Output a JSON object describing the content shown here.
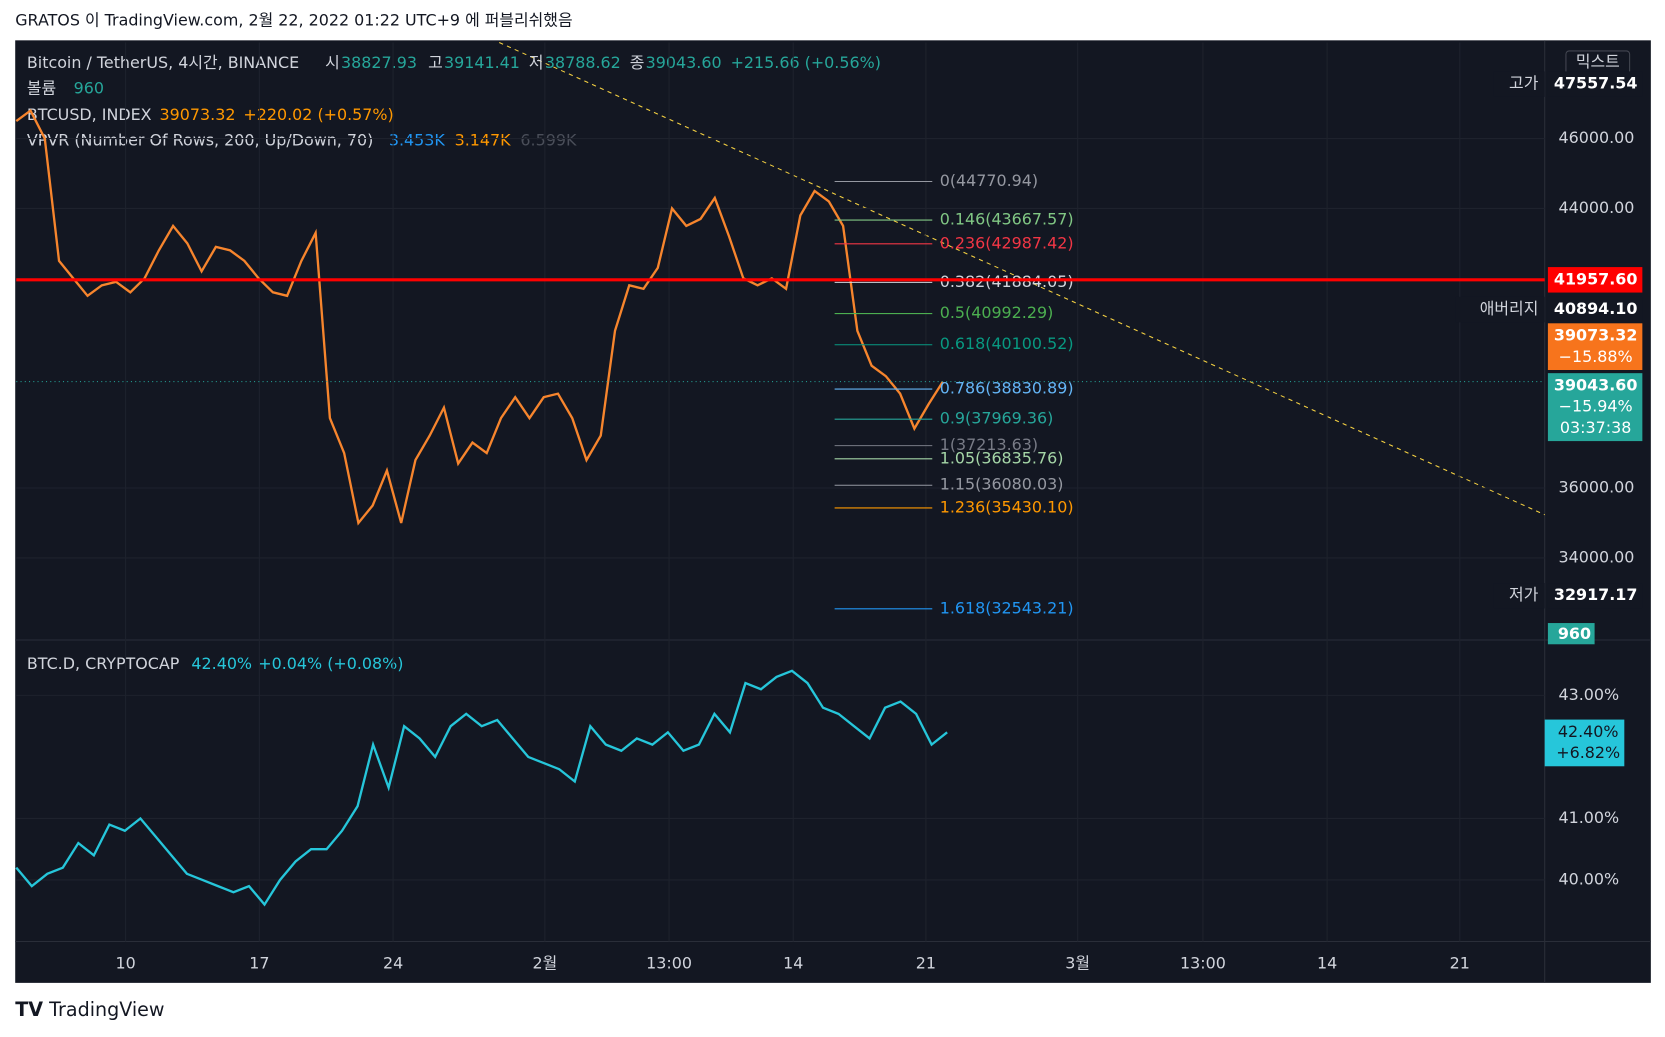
{
  "header": {
    "publish_note": "GRATOS 이 TradingView.com, 2월 22, 2022 01:22 UTC+9 에 퍼블리쉬했음"
  },
  "legend": {
    "symbol": "Bitcoin / TetherUS, 4시간, BINANCE",
    "ohlc": [
      "시",
      "38827.93",
      "고",
      "39141.41",
      "저",
      "38788.62",
      "종",
      "39043.60"
    ],
    "change": "+215.66 (+0.56%)",
    "volume_label": "볼륨",
    "volume": "960",
    "index": "BTCUSD, INDEX",
    "index_price": "39073.32",
    "index_change": "+220.02 (+0.57%)",
    "vpvr": "VPVR (Number Of Rows, 200, Up/Down, 70)",
    "vpvr_values": [
      "3.453K",
      "3.147K",
      "6.599K"
    ],
    "scale_mode": "믹스트"
  },
  "chart_data": [
    {
      "type": "line",
      "color": "#f7852d",
      "values": [
        46500,
        46800,
        46000,
        42500,
        42000,
        41500,
        41800,
        41900,
        41600,
        42000,
        42800,
        43500,
        43000,
        42200,
        42900,
        42800,
        42500,
        42000,
        41600,
        41500,
        42500,
        43300,
        38000,
        37000,
        35000,
        35500,
        36500,
        35000,
        36800,
        37500,
        38300,
        36700,
        37300,
        37000,
        38000,
        38600,
        38000,
        38600,
        38700,
        38000,
        36800,
        37500,
        40500,
        41800,
        41700,
        42300,
        44000,
        43500,
        43700,
        44300,
        43200,
        42000,
        41800,
        42000,
        41700,
        43800,
        44500,
        44200,
        43500,
        40500,
        39500,
        39200,
        38700,
        37700,
        38400,
        39043.6
      ],
      "ylim": [
        31650,
        48750
      ],
      "yticks": [
        {
          "value": 34000,
          "label": "34000.00"
        },
        {
          "value": 36000,
          "label": "36000.00"
        },
        {
          "value": 44000,
          "label": "44000.00"
        },
        {
          "value": 46000,
          "label": "46000.00"
        }
      ],
      "xtick_labels": [
        "10",
        "17",
        "24",
        "2월",
        "13:00",
        "14",
        "21",
        "3월",
        "13:00",
        "14",
        "21"
      ],
      "fib_levels": [
        {
          "label": "0(44770.94)",
          "value": 44770.94,
          "color": "#9598a1"
        },
        {
          "label": "0.146(43667.57)",
          "value": 43667.57,
          "color": "#81c784"
        },
        {
          "label": "0.236(42987.42)",
          "value": 42987.42,
          "color": "#f23645"
        },
        {
          "label": "0.382(41884.05)",
          "value": 41884.05,
          "color": "#d1d4dc"
        },
        {
          "label": "0.5(40992.29)",
          "value": 40992.29,
          "color": "#4caf50"
        },
        {
          "label": "0.618(40100.52)",
          "value": 40100.52,
          "color": "#089981"
        },
        {
          "label": "0.786(38830.89)",
          "value": 38830.89,
          "color": "#64b5f6"
        },
        {
          "label": "0.9(37969.36)",
          "value": 37969.36,
          "color": "#26a69a"
        },
        {
          "label": "1(37213.63)",
          "value": 37213.63,
          "color": "#787b86"
        },
        {
          "label": "1.05(36835.76)",
          "value": 36835.76,
          "color": "#a5d6a7"
        },
        {
          "label": "1.15(36080.03)",
          "value": 36080.03,
          "color": "#9598a1"
        },
        {
          "label": "1.236(35430.10)",
          "value": 35430.1,
          "color": "#ff9800"
        },
        {
          "label": "1.618(32543.21)",
          "value": 32543.21,
          "color": "#2196f3"
        }
      ],
      "markers": [
        {
          "label": "고가",
          "value": 47557.54,
          "value_label": "47557.54",
          "color": "#131722"
        },
        {
          "value": 41957.6,
          "value_label": "41957.60",
          "color": "#ff0000"
        },
        {
          "label": "애버리지",
          "value": 40894.1,
          "value_label": "40894.10",
          "color": "#131722"
        },
        {
          "value": 39073.32,
          "value_label": "39073.32",
          "sub": "−15.88%",
          "color": "#f7741c"
        },
        {
          "value": 39043.6,
          "value_label": "39043.60",
          "sub": "−15.94%",
          "sub2": "03:37:38",
          "color": "#26a69a"
        },
        {
          "label": "저가",
          "value": 32917.17,
          "value_label": "32917.17",
          "color": "#131722"
        }
      ],
      "volume_badge": "960"
    },
    {
      "type": "line",
      "title": "BTC.D, CRYPTOCAP",
      "last": "42.40%",
      "change": "+0.04% (+0.08%)",
      "color": "#26c6da",
      "values": [
        40.2,
        39.9,
        40.1,
        40.2,
        40.6,
        40.4,
        40.9,
        40.8,
        41.0,
        40.7,
        40.4,
        40.1,
        40.0,
        39.9,
        39.8,
        39.9,
        39.6,
        40.0,
        40.3,
        40.5,
        40.5,
        40.8,
        41.2,
        42.2,
        41.5,
        42.5,
        42.3,
        42.0,
        42.5,
        42.7,
        42.5,
        42.6,
        42.3,
        42.0,
        41.9,
        41.8,
        41.6,
        42.5,
        42.2,
        42.1,
        42.3,
        42.2,
        42.4,
        42.1,
        42.2,
        42.7,
        42.4,
        43.2,
        43.1,
        43.3,
        43.4,
        43.2,
        42.8,
        42.7,
        42.5,
        42.3,
        42.8,
        42.9,
        42.7,
        42.2,
        42.4
      ],
      "ylim": [
        39.0,
        43.9
      ],
      "yticks": [
        {
          "value": 40,
          "label": "40.00%"
        },
        {
          "value": 41,
          "label": "41.00%"
        },
        {
          "value": 43,
          "label": "43.00%"
        }
      ],
      "badge": [
        "42.40%",
        "+6.82%"
      ]
    }
  ],
  "footer": {
    "brand": "TradingView"
  }
}
